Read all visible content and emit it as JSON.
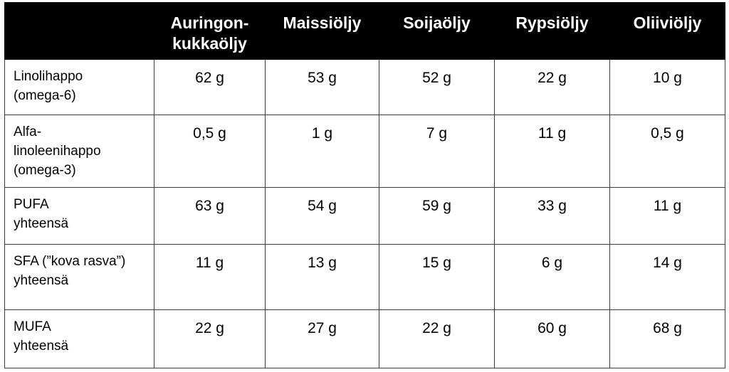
{
  "table": {
    "headers": [
      "",
      "Auringon-\nkukkaöljy",
      "Maissiöljy",
      "Soijaöljy",
      "Rypsiöljy",
      "Oliiviöljy"
    ],
    "header_lines": {
      "h1_line1": "Auringon-",
      "h1_line2": "kukkaöljy"
    },
    "rows": [
      {
        "label_line1": "Linolihappo",
        "label_line2": "(omega-6)",
        "label_line3": "",
        "values": [
          "62 g",
          "53 g",
          "52 g",
          "22 g",
          "10 g"
        ]
      },
      {
        "label_line1": "Alfa-",
        "label_line2": "linoleenihappo",
        "label_line3": "(omega-3)",
        "values": [
          "0,5 g",
          "1 g",
          "7 g",
          "11 g",
          "0,5 g"
        ]
      },
      {
        "label_line1": "PUFA",
        "label_line2": "yhteensä",
        "label_line3": "",
        "values": [
          "63 g",
          "54 g",
          "59 g",
          "33 g",
          "11 g"
        ]
      },
      {
        "label_line1": "SFA (”kova rasva”)",
        "label_line2": "yhteensä",
        "label_line3": "",
        "values": [
          "11 g",
          "13 g",
          "15 g",
          "6 g",
          "14 g"
        ]
      },
      {
        "label_line1": "MUFA",
        "label_line2": "yhteensä",
        "label_line3": "",
        "values": [
          "22 g",
          "27 g",
          "22 g",
          "60 g",
          "68 g"
        ]
      }
    ]
  }
}
